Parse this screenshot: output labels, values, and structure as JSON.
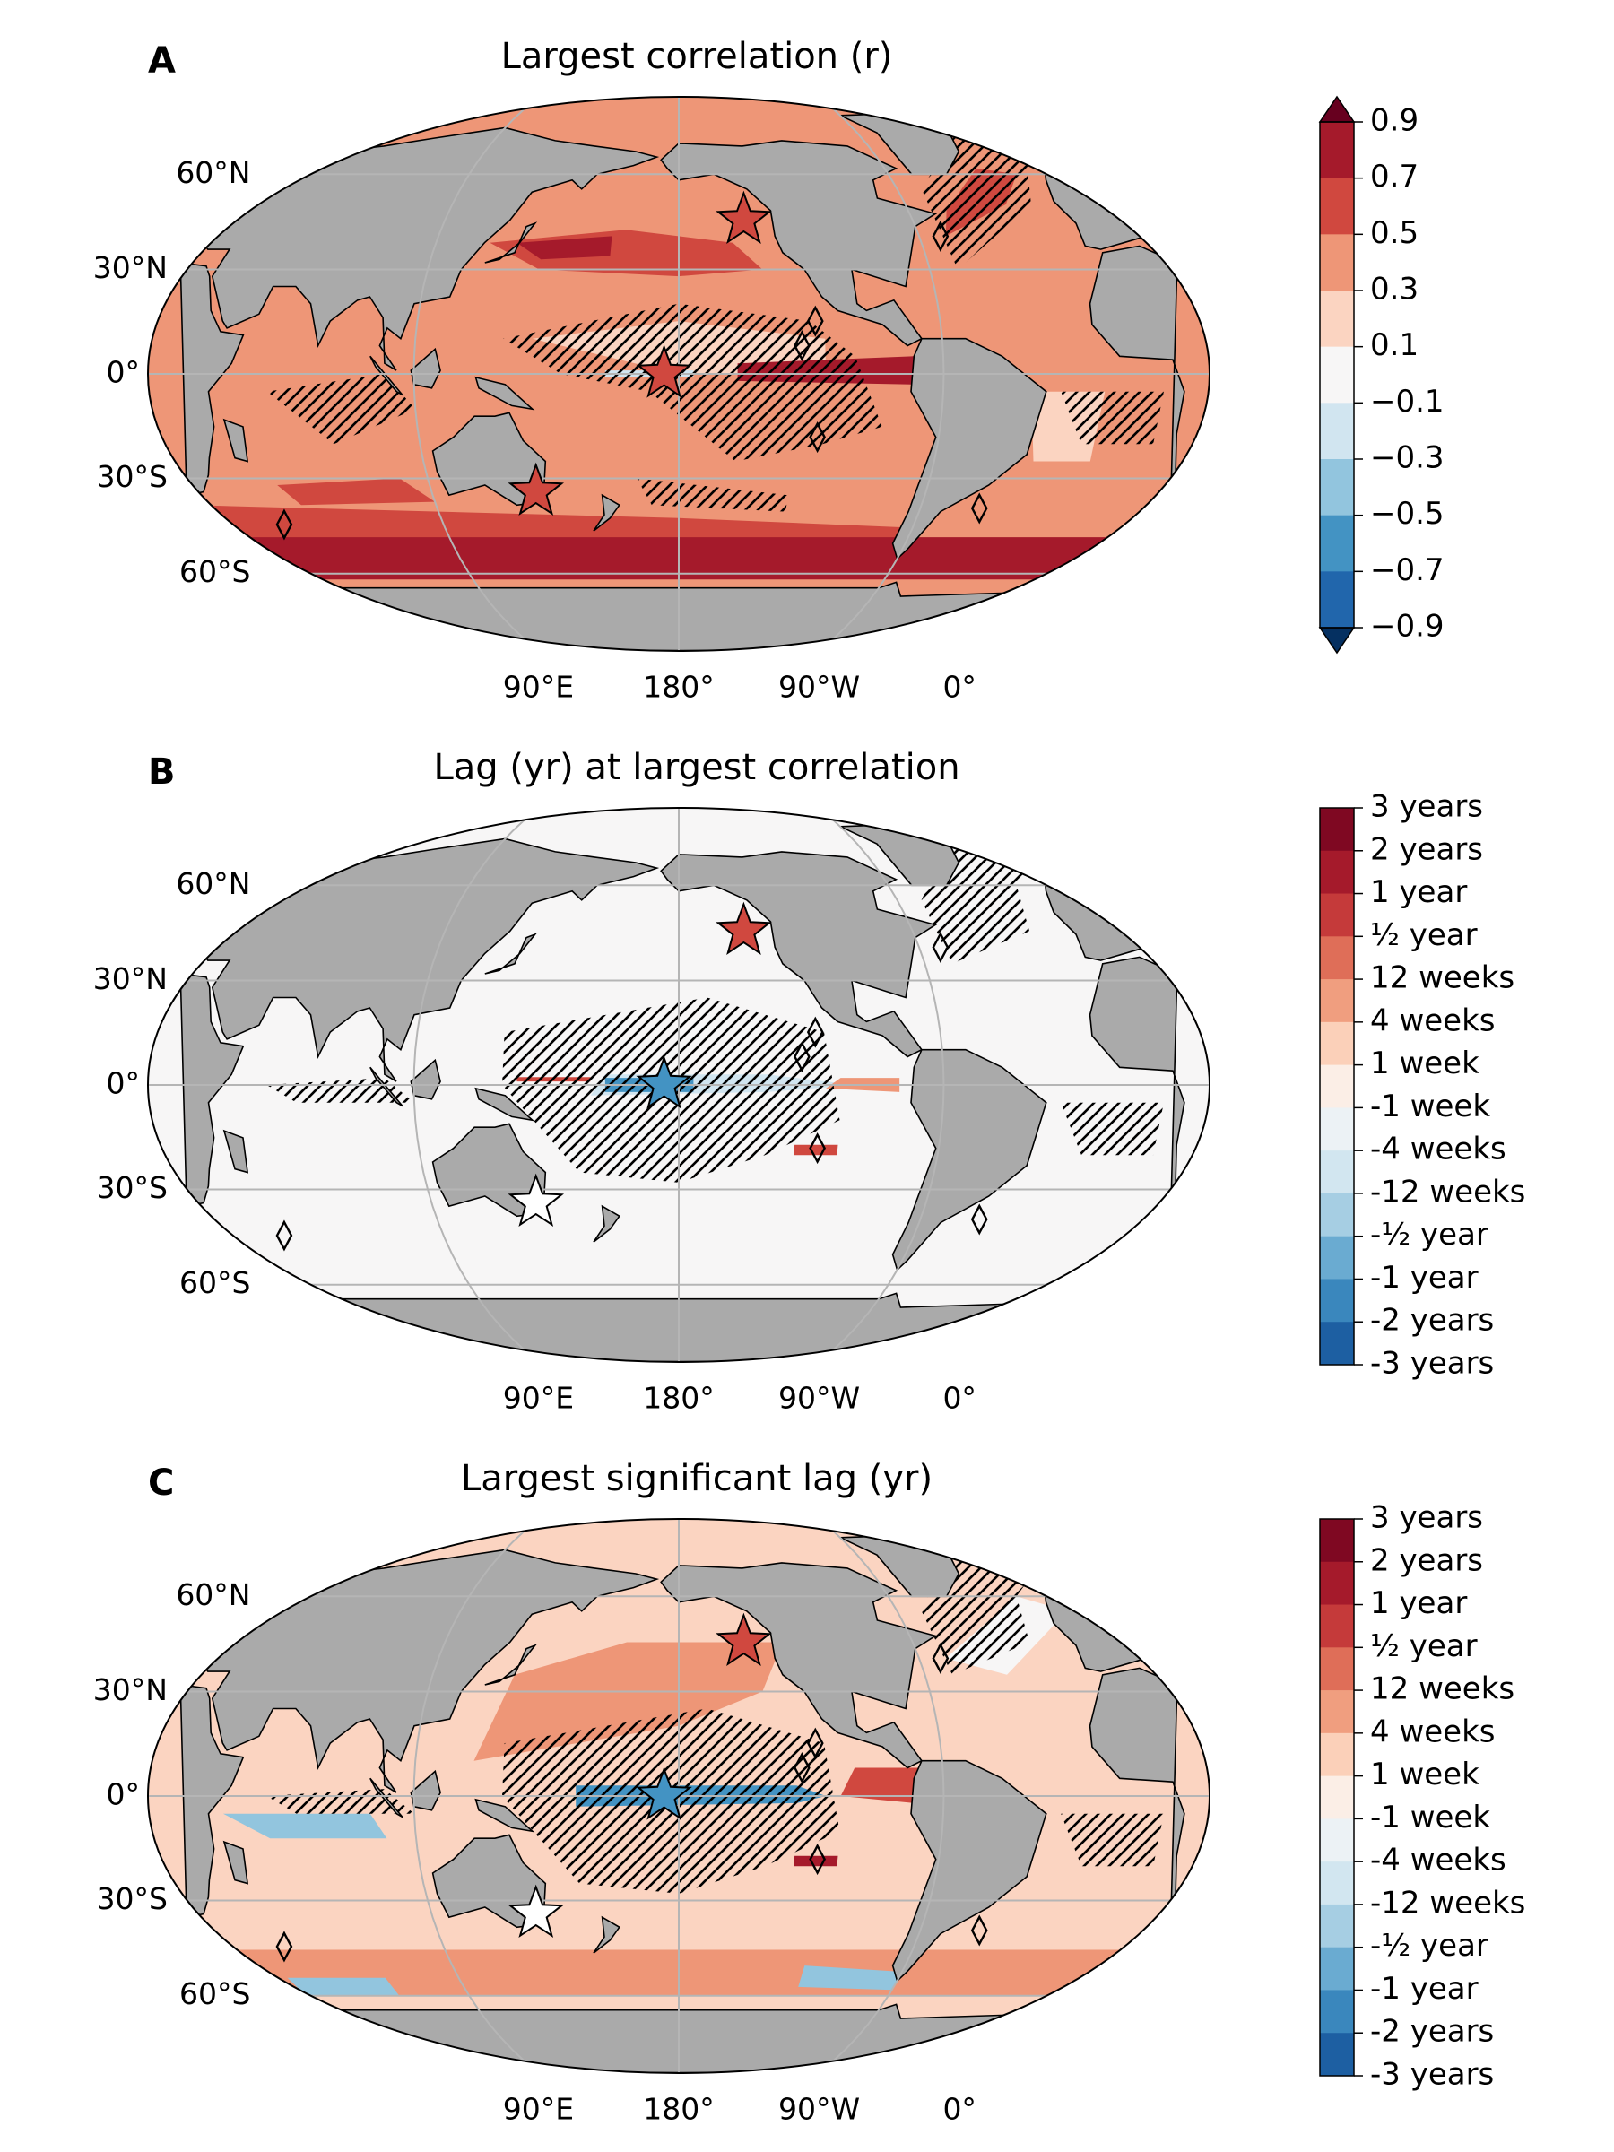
{
  "panels": [
    {
      "letter": "A",
      "title": "Largest correlation (r)",
      "lat_labels": [
        "60°N",
        "30°N",
        "0°",
        "30°S",
        "60°S"
      ],
      "lon_labels": [
        "90°E",
        "180°",
        "90°W",
        "0°"
      ],
      "marker_colors": [
        "#d0483f",
        "#d0483f",
        "#d0483f"
      ],
      "colorbar": {
        "ticks": [
          "0.9",
          "0.7",
          "0.5",
          "0.3",
          "0.1",
          "−0.1",
          "−0.3",
          "−0.5",
          "−0.7",
          "−0.9"
        ],
        "colors": [
          "#a51a2b",
          "#d0483f",
          "#ee9677",
          "#fbd4c1",
          "#f7f6f6",
          "#d1e5f0",
          "#92c5de",
          "#4393c3",
          "#2166ac"
        ],
        "extend_colors": [
          "#67001f",
          "#053061"
        ]
      }
    },
    {
      "letter": "B",
      "title": "Lag (yr) at largest correlation",
      "lat_labels": [
        "60°N",
        "30°N",
        "0°",
        "30°S",
        "60°S"
      ],
      "lon_labels": [
        "90°E",
        "180°",
        "90°W",
        "0°"
      ],
      "marker_colors": [
        "#d0483f",
        "#4393c3",
        "#ffffff"
      ],
      "colorbar": {
        "ticks": [
          "3 years",
          "2 years",
          "1 year",
          "½ year",
          "12 weeks",
          "4 weeks",
          "1 week",
          "-1 week",
          "-4 weeks",
          "-12 weeks",
          "-½ year",
          "-1 year",
          "-2 years",
          "-3 years"
        ],
        "colors": [
          "#7f0822",
          "#a51a2b",
          "#c53a3a",
          "#df6e58",
          "#f09e7f",
          "#fbd0b9",
          "#fbeee6",
          "#ecf2f5",
          "#d2e6f0",
          "#a6cee3",
          "#6aabd1",
          "#3a87bd",
          "#1d5fa2"
        ]
      }
    },
    {
      "letter": "C",
      "title": "Largest significant lag (yr)",
      "lat_labels": [
        "60°N",
        "30°N",
        "0°",
        "30°S",
        "60°S"
      ],
      "lon_labels": [
        "90°E",
        "180°",
        "90°W",
        "0°"
      ],
      "marker_colors": [
        "#d0483f",
        "#4393c3",
        "#ffffff"
      ],
      "colorbar": {
        "ticks": [
          "3 years",
          "2 years",
          "1 year",
          "½ year",
          "12 weeks",
          "4 weeks",
          "1 week",
          "-1 week",
          "-4 weeks",
          "-12 weeks",
          "-½ year",
          "-1 year",
          "-2 years",
          "-3 years"
        ],
        "colors": [
          "#7f0822",
          "#a51a2b",
          "#c53a3a",
          "#df6e58",
          "#f09e7f",
          "#fbd0b9",
          "#fbeee6",
          "#ecf2f5",
          "#d2e6f0",
          "#a6cee3",
          "#6aabd1",
          "#3a87bd",
          "#1d5fa2"
        ]
      }
    }
  ]
}
